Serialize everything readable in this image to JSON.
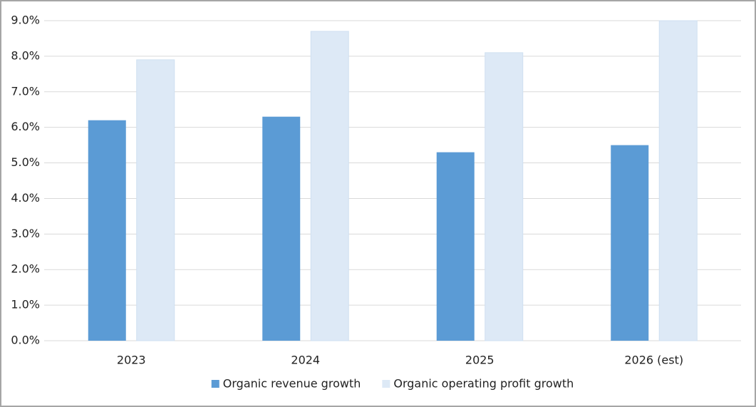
{
  "chart_data": {
    "type": "bar",
    "categories": [
      "2023",
      "2024",
      "2025",
      "2026 (est)"
    ],
    "series": [
      {
        "name": "Organic revenue growth",
        "color": "#5b9bd5",
        "values": [
          6.2,
          6.3,
          5.3,
          5.5
        ]
      },
      {
        "name": "Organic operating profit growth",
        "color": "#dde9f6",
        "values": [
          7.9,
          8.7,
          8.1,
          9.0
        ]
      }
    ],
    "ylim": [
      0,
      9
    ],
    "yticks": [
      {
        "value": 0,
        "label": "0.0%"
      },
      {
        "value": 1,
        "label": "1.0%"
      },
      {
        "value": 2,
        "label": "2.0%"
      },
      {
        "value": 3,
        "label": "3.0%"
      },
      {
        "value": 4,
        "label": "4.0%"
      },
      {
        "value": 5,
        "label": "5.0%"
      },
      {
        "value": 6,
        "label": "6.0%"
      },
      {
        "value": 7,
        "label": "7.0%"
      },
      {
        "value": 8,
        "label": "8.0%"
      },
      {
        "value": 9,
        "label": "9.0%"
      }
    ],
    "grid": true,
    "legend": "bottom"
  }
}
